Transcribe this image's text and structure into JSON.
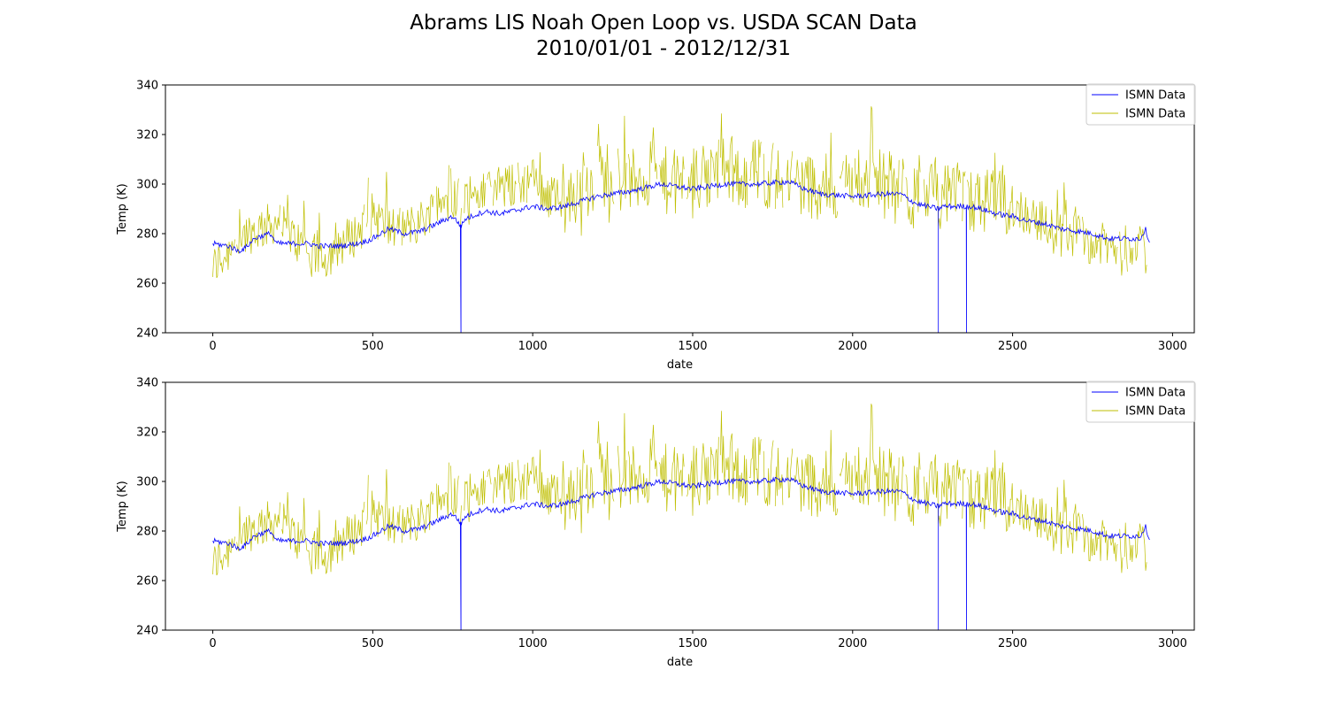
{
  "title_line1": "Abrams LIS Noah Open Loop vs. USDA SCAN Data",
  "title_line2": "2010/01/01 - 2012/12/31",
  "colors": {
    "series1": "#0000ff",
    "series2": "#bfbf00"
  },
  "chart_data": [
    {
      "type": "line",
      "xlabel": "date",
      "ylabel": "Temp (K)",
      "xlim": [
        -148,
        3068
      ],
      "ylim": [
        240,
        340
      ],
      "xticks": [
        0,
        500,
        1000,
        1500,
        2000,
        2500,
        3000
      ],
      "yticks": [
        240,
        260,
        280,
        300,
        320,
        340
      ],
      "legend_position": "upper-right",
      "grid": false,
      "series": [
        {
          "name": "ISMN Data",
          "color": "#0000ff",
          "x": [
            0,
            50,
            80,
            100,
            130,
            150,
            180,
            200,
            230,
            260,
            300,
            330,
            350,
            400,
            450,
            480,
            500,
            550,
            600,
            650,
            700,
            750,
            776,
            790,
            850,
            900,
            1000,
            1050,
            1100,
            1150,
            1200,
            1300,
            1400,
            1500,
            1600,
            1700,
            1800,
            1850,
            1900,
            2000,
            2100,
            2150,
            2200,
            2268,
            2280,
            2356,
            2370,
            2400,
            2450,
            2500,
            2550,
            2600,
            2650,
            2700,
            2750,
            2800,
            2850,
            2900,
            2915,
            2930
          ],
          "values": [
            276,
            275,
            273,
            274,
            278,
            279,
            280,
            276,
            276,
            276,
            276,
            275,
            275,
            275,
            276,
            277,
            278,
            282,
            280,
            281,
            284,
            287,
            283,
            286,
            289,
            288,
            291,
            290,
            291,
            293,
            295,
            297,
            300,
            298,
            300,
            300,
            301,
            298,
            296,
            295,
            296,
            296,
            292,
            290,
            291,
            291,
            291,
            290,
            288,
            287,
            285,
            284,
            282,
            281,
            280,
            278,
            278,
            278,
            282,
            276
          ],
          "drops_to_axis_at_x": [
            776,
            2268,
            2356
          ]
        },
        {
          "name": "ISMN Data",
          "color": "#bfbf00",
          "description_x_range": [
            0,
            2930
          ],
          "x": [
            0,
            100,
            150,
            200,
            300,
            350,
            400,
            450,
            500,
            550,
            600,
            650,
            700,
            750,
            800,
            850,
            900,
            950,
            1000,
            1050,
            1100,
            1150,
            1200,
            1250,
            1300,
            1350,
            1400,
            1450,
            1500,
            1550,
            1600,
            1650,
            1700,
            1750,
            1800,
            1850,
            1900,
            1950,
            2000,
            2050,
            2100,
            2150,
            2200,
            2250,
            2300,
            2350,
            2400,
            2450,
            2500,
            2550,
            2600,
            2650,
            2700,
            2750,
            2800,
            2850,
            2900,
            2920
          ],
          "values": [
            266,
            280,
            282,
            285,
            272,
            270,
            276,
            280,
            288,
            282,
            282,
            285,
            292,
            295,
            296,
            296,
            298,
            300,
            302,
            295,
            292,
            298,
            302,
            306,
            300,
            304,
            302,
            300,
            300,
            303,
            306,
            304,
            305,
            303,
            302,
            300,
            299,
            298,
            303,
            302,
            300,
            298,
            293,
            297,
            294,
            292,
            293,
            292,
            291,
            288,
            284,
            278,
            280,
            276,
            275,
            271,
            280,
            260
          ],
          "high_frequency_spikes": true
        }
      ]
    },
    {
      "type": "line",
      "xlabel": "date",
      "ylabel": "Temp (K)",
      "xlim": [
        -148,
        3068
      ],
      "ylim": [
        240,
        340
      ],
      "xticks": [
        0,
        500,
        1000,
        1500,
        2000,
        2500,
        3000
      ],
      "yticks": [
        240,
        260,
        280,
        300,
        320,
        340
      ],
      "legend_position": "upper-right",
      "grid": false,
      "series": [
        {
          "name": "ISMN Data",
          "color": "#0000ff",
          "x": [
            0,
            50,
            80,
            100,
            130,
            150,
            180,
            200,
            230,
            260,
            300,
            330,
            350,
            400,
            450,
            480,
            500,
            550,
            600,
            650,
            700,
            750,
            776,
            790,
            850,
            900,
            1000,
            1050,
            1100,
            1150,
            1200,
            1300,
            1400,
            1500,
            1600,
            1700,
            1800,
            1850,
            1900,
            2000,
            2100,
            2150,
            2200,
            2268,
            2280,
            2356,
            2370,
            2400,
            2450,
            2500,
            2550,
            2600,
            2650,
            2700,
            2750,
            2800,
            2850,
            2900,
            2915,
            2930
          ],
          "values": [
            276,
            275,
            273,
            274,
            278,
            279,
            280,
            276,
            276,
            276,
            276,
            275,
            275,
            275,
            276,
            277,
            278,
            282,
            280,
            281,
            284,
            287,
            283,
            286,
            289,
            288,
            291,
            290,
            291,
            293,
            295,
            297,
            300,
            298,
            300,
            300,
            301,
            298,
            296,
            295,
            296,
            296,
            292,
            290,
            291,
            291,
            291,
            290,
            288,
            287,
            285,
            284,
            282,
            281,
            280,
            278,
            278,
            278,
            282,
            276
          ],
          "drops_to_axis_at_x": [
            776,
            2268,
            2356
          ]
        },
        {
          "name": "ISMN Data",
          "color": "#bfbf00",
          "x": [
            0,
            100,
            150,
            200,
            300,
            350,
            400,
            450,
            500,
            550,
            600,
            650,
            700,
            750,
            800,
            850,
            900,
            950,
            1000,
            1050,
            1100,
            1150,
            1200,
            1250,
            1300,
            1350,
            1400,
            1450,
            1500,
            1550,
            1600,
            1650,
            1700,
            1750,
            1800,
            1850,
            1900,
            1950,
            2000,
            2050,
            2100,
            2150,
            2200,
            2250,
            2300,
            2350,
            2400,
            2450,
            2500,
            2550,
            2600,
            2650,
            2700,
            2750,
            2800,
            2850,
            2900,
            2920
          ],
          "values": [
            266,
            280,
            282,
            285,
            272,
            270,
            276,
            280,
            288,
            282,
            282,
            285,
            292,
            295,
            296,
            296,
            298,
            300,
            302,
            295,
            292,
            298,
            302,
            306,
            300,
            304,
            302,
            300,
            300,
            303,
            306,
            304,
            305,
            303,
            302,
            300,
            299,
            298,
            303,
            302,
            300,
            298,
            293,
            297,
            294,
            292,
            293,
            292,
            291,
            288,
            284,
            278,
            280,
            276,
            275,
            271,
            280,
            260
          ],
          "high_frequency_spikes": true
        }
      ]
    }
  ]
}
